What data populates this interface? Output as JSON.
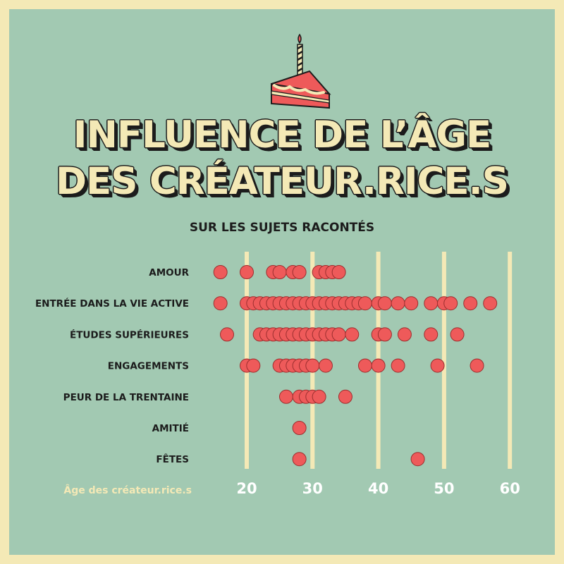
{
  "title_lines": [
    "INFLUENCE DE L’ÂGE",
    "DES CRÉATEUR.RICE.S"
  ],
  "subtitle": "SUR LES SUJETS RACONTÉS",
  "icon": "birthday-cake-slice-icon",
  "colors": {
    "background": "#a2c9b2",
    "border": "#f4e9b6",
    "dot": "#ee5a5a",
    "gridline": "#f4e9b6",
    "text_dark": "#1c1c1c",
    "tick_text": "#ffffff"
  },
  "chart_data": {
    "type": "scatter",
    "title": "INFLUENCE DE L’ÂGE DES CRÉATEUR.RICE.S",
    "subtitle": "SUR LES SUJETS RACONTÉS",
    "xlabel": "Âge des créateur.rice.s",
    "ylabel": "",
    "xlim": [
      15,
      62
    ],
    "xticks": [
      20,
      30,
      40,
      50,
      60
    ],
    "grid": "vertical",
    "categories": [
      "AMOUR",
      "ENTRÉE DANS LA VIE ACTIVE",
      "ÉTUDES SUPÉRIEURES",
      "ENGAGEMENTS",
      "PEUR DE LA TRENTAINE",
      "AMITIÉ",
      "FÊTES"
    ],
    "series": [
      {
        "category": "AMOUR",
        "ages": [
          16,
          20,
          24,
          25,
          27,
          28,
          31,
          32,
          33,
          34
        ]
      },
      {
        "category": "ENTRÉE DANS LA VIE ACTIVE",
        "ages": [
          16,
          20,
          21,
          22,
          23,
          24,
          25,
          26,
          27,
          28,
          29,
          30,
          31,
          32,
          33,
          34,
          35,
          36,
          37,
          38,
          40,
          41,
          43,
          45,
          48,
          50,
          51,
          54,
          57
        ]
      },
      {
        "category": "ÉTUDES SUPÉRIEURES",
        "ages": [
          17,
          22,
          23,
          24,
          25,
          26,
          27,
          28,
          29,
          30,
          31,
          32,
          33,
          34,
          36,
          40,
          41,
          44,
          48,
          52
        ]
      },
      {
        "category": "ENGAGEMENTS",
        "ages": [
          20,
          21,
          25,
          26,
          27,
          28,
          29,
          30,
          32,
          38,
          40,
          43,
          49,
          55
        ]
      },
      {
        "category": "PEUR DE LA TRENTAINE",
        "ages": [
          26,
          28,
          29,
          30,
          31,
          35
        ]
      },
      {
        "category": "AMITIÉ",
        "ages": [
          28
        ]
      },
      {
        "category": "FÊTES",
        "ages": [
          28,
          46
        ]
      }
    ]
  }
}
